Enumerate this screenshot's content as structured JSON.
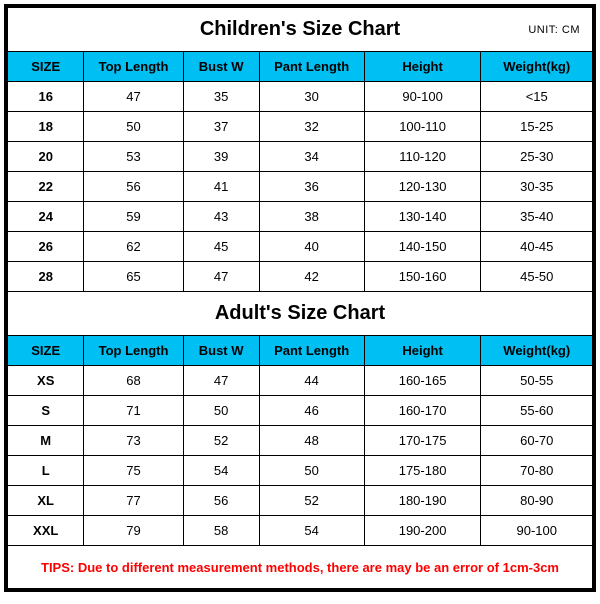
{
  "unit_label": "UNIT: CM",
  "header_bg": "#00bff3",
  "border_color": "#000000",
  "tips_color": "#ff0000",
  "children": {
    "title": "Children's Size Chart",
    "columns": [
      "SIZE",
      "Top Length",
      "Bust W",
      "Pant Length",
      "Height",
      "Weight(kg)"
    ],
    "rows": [
      [
        "16",
        "47",
        "35",
        "30",
        "90-100",
        "<15"
      ],
      [
        "18",
        "50",
        "37",
        "32",
        "100-110",
        "15-25"
      ],
      [
        "20",
        "53",
        "39",
        "34",
        "110-120",
        "25-30"
      ],
      [
        "22",
        "56",
        "41",
        "36",
        "120-130",
        "30-35"
      ],
      [
        "24",
        "59",
        "43",
        "38",
        "130-140",
        "35-40"
      ],
      [
        "26",
        "62",
        "45",
        "40",
        "140-150",
        "40-45"
      ],
      [
        "28",
        "65",
        "47",
        "42",
        "150-160",
        "45-50"
      ]
    ]
  },
  "adult": {
    "title": "Adult's Size Chart",
    "columns": [
      "SIZE",
      "Top Length",
      "Bust W",
      "Pant Length",
      "Height",
      "Weight(kg)"
    ],
    "rows": [
      [
        "XS",
        "68",
        "47",
        "44",
        "160-165",
        "50-55"
      ],
      [
        "S",
        "71",
        "50",
        "46",
        "160-170",
        "55-60"
      ],
      [
        "M",
        "73",
        "52",
        "48",
        "170-175",
        "60-70"
      ],
      [
        "L",
        "75",
        "54",
        "50",
        "175-180",
        "70-80"
      ],
      [
        "XL",
        "77",
        "56",
        "52",
        "180-190",
        "80-90"
      ],
      [
        "XXL",
        "79",
        "58",
        "54",
        "190-200",
        "90-100"
      ]
    ]
  },
  "tips": "TIPS: Due to different measurement methods, there are may be an error of 1cm-3cm"
}
